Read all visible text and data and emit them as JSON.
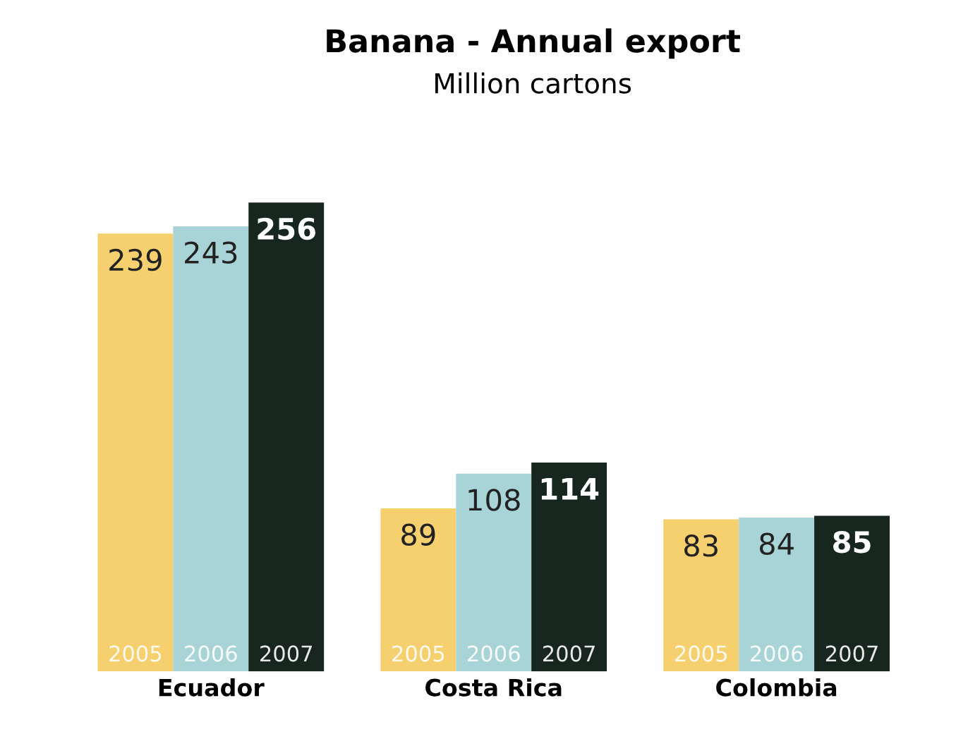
{
  "chart_data": {
    "type": "bar",
    "title": "Banana - Annual export",
    "subtitle": "Million cartons",
    "categories": [
      "Ecuador",
      "Costa Rica",
      "Colombia"
    ],
    "series": [
      {
        "name": "2005",
        "color": "#f6d06e",
        "values": [
          239,
          89,
          83
        ]
      },
      {
        "name": "2006",
        "color": "#a9d4d7",
        "values": [
          243,
          108,
          84
        ]
      },
      {
        "name": "2007",
        "color": "#17261f",
        "values": [
          256,
          114,
          85
        ]
      }
    ],
    "data_labels": true,
    "legend": false,
    "grid": false
  }
}
